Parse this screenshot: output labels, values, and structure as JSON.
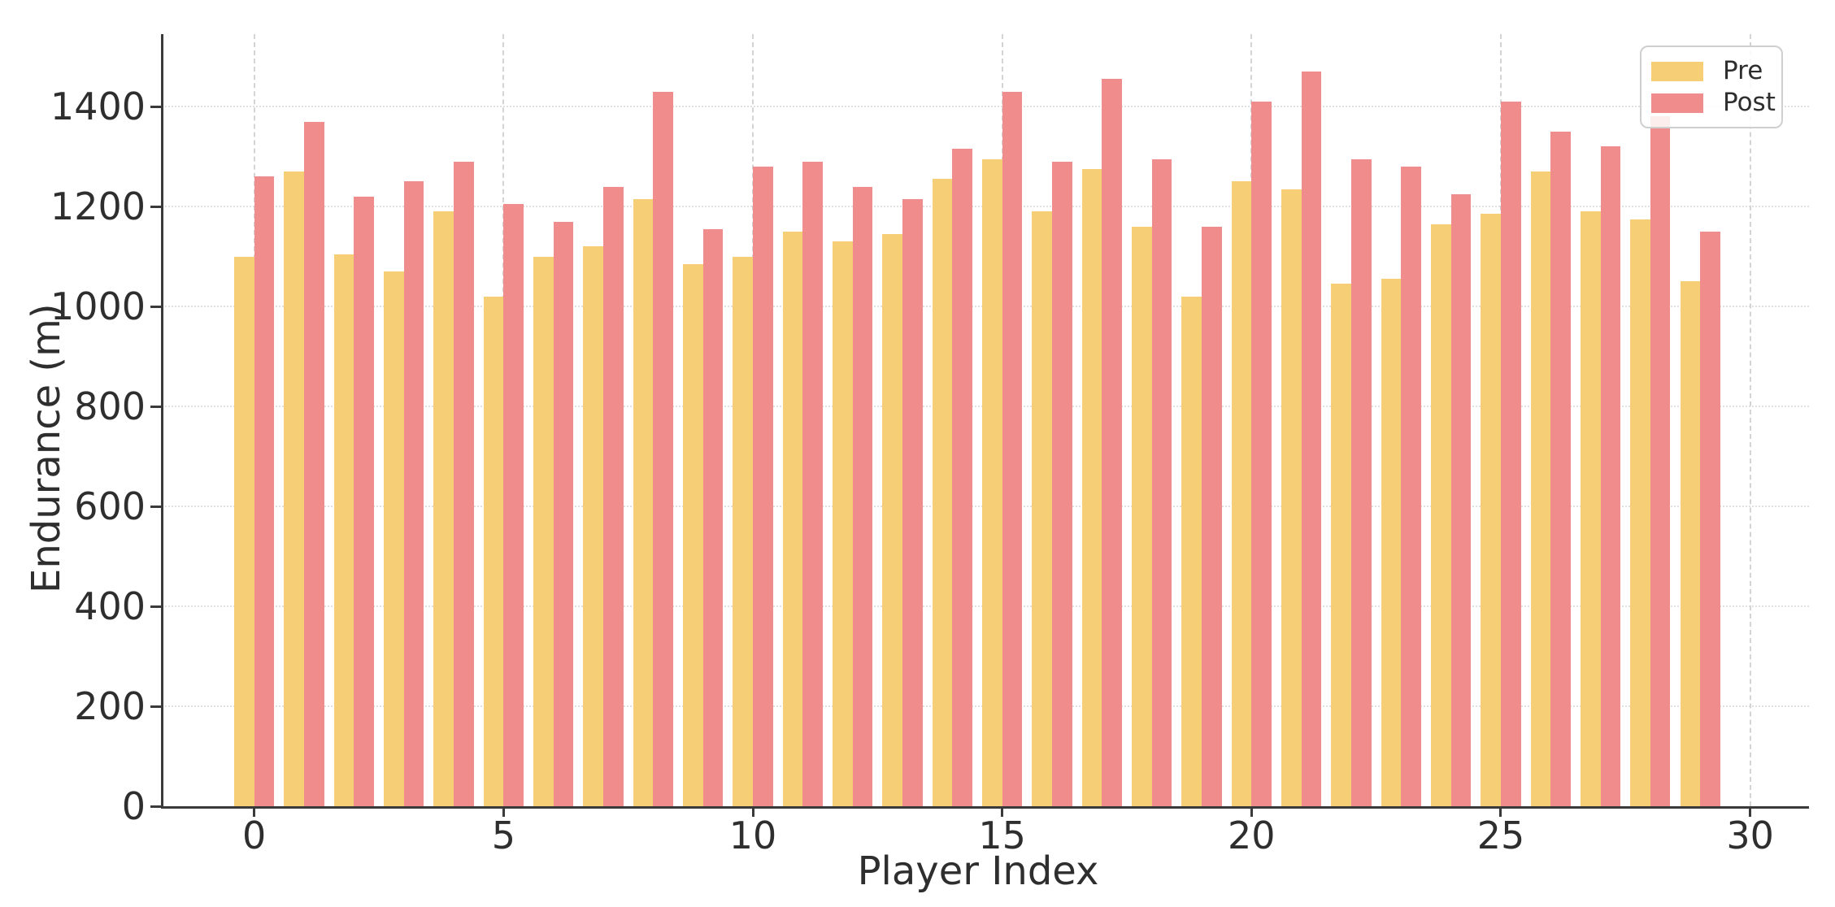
{
  "chart_data": {
    "type": "bar",
    "title": "",
    "xlabel": "Player Index",
    "ylabel": "Endurance (m)",
    "categories": [
      0,
      1,
      2,
      3,
      4,
      5,
      6,
      7,
      8,
      9,
      10,
      11,
      12,
      13,
      14,
      15,
      16,
      17,
      18,
      19,
      20,
      21,
      22,
      23,
      24,
      25,
      26,
      27,
      28,
      29
    ],
    "series": [
      {
        "name": "Pre",
        "color": "#F6CE75",
        "values": [
          1100,
          1270,
          1105,
          1070,
          1190,
          1020,
          1100,
          1120,
          1215,
          1085,
          1100,
          1150,
          1130,
          1145,
          1255,
          1295,
          1190,
          1275,
          1160,
          1020,
          1250,
          1235,
          1045,
          1055,
          1165,
          1185,
          1270,
          1190,
          1175,
          1050
        ]
      },
      {
        "name": "Post",
        "color": "#F08C8C",
        "values": [
          1260,
          1370,
          1220,
          1250,
          1290,
          1205,
          1170,
          1240,
          1430,
          1155,
          1280,
          1290,
          1240,
          1215,
          1315,
          1430,
          1290,
          1455,
          1295,
          1160,
          1410,
          1470,
          1295,
          1280,
          1225,
          1410,
          1350,
          1320,
          1380,
          1150
        ]
      }
    ],
    "xticks": [
      0,
      5,
      10,
      15,
      20,
      25,
      30
    ],
    "yticks": [
      0,
      200,
      400,
      600,
      800,
      1000,
      1200,
      1400
    ],
    "xlim": [
      -1.87,
      31.18
    ],
    "ylim": [
      0,
      1545
    ],
    "grid": true,
    "legend_position": "upper right",
    "axis_color": "#3a3a3a",
    "text_color": "#2e2e2e"
  }
}
